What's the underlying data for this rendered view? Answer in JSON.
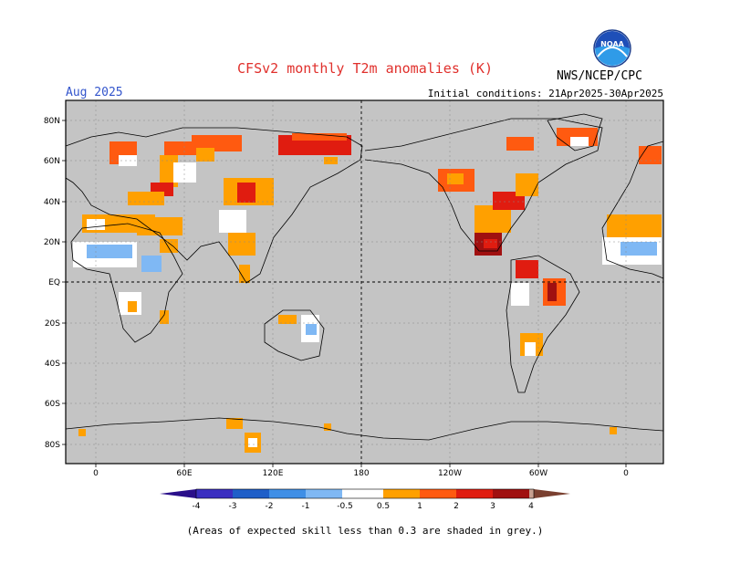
{
  "header": {
    "title": "CFSv2 monthly T2m anomalies (K)",
    "month": "Aug 2025",
    "initial_conditions": "Initial conditions: 21Apr2025-30Apr2025",
    "agency": "NWS/NCEP/CPC",
    "logo_text": "NOAA"
  },
  "axes": {
    "lat_labels": [
      "80N",
      "60N",
      "40N",
      "20N",
      "EQ",
      "20S",
      "40S",
      "60S",
      "80S"
    ],
    "lon_labels": [
      "0",
      "60E",
      "120E",
      "180",
      "120W",
      "60W",
      "0"
    ]
  },
  "colorbar": {
    "labels": [
      "-4",
      "-3",
      "-2",
      "-1",
      "-0.5",
      "0.5",
      "1",
      "2",
      "3",
      "4"
    ],
    "colors": {
      "lt_-4": "#2a0f8a",
      "-4_-3": "#3a2ec0",
      "-3_-2": "#1f5fc8",
      "-2_-1": "#3f8fe6",
      "-1_-0.5": "#7fb8f4",
      "-0.5_0.5": "#ffffff",
      "0.5_1": "#ffa000",
      "1_2": "#ff5a10",
      "2_3": "#e01c10",
      "3_4": "#a01010",
      "4_5": "#c8a090",
      "gt_5": "#7a4030"
    }
  },
  "colors": {
    "grey_skill": "#c4c4c4",
    "title": "#e0302c",
    "month": "#3355cc"
  },
  "footnote": "(Areas of expected skill less than 0.3 are shaded in grey.)"
}
